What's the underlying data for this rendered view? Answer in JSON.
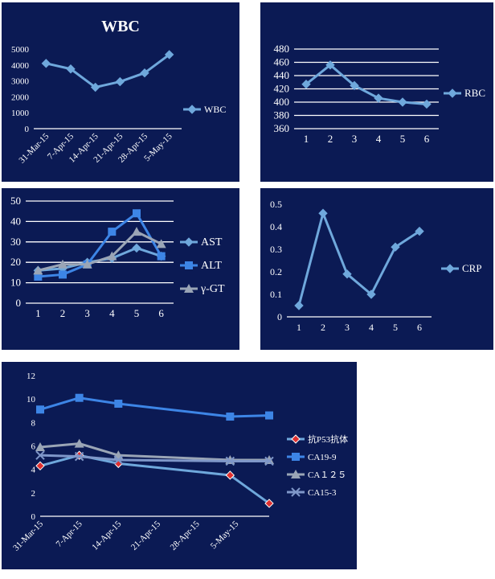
{
  "charts": {
    "wbc": {
      "type": "line",
      "title": "WBC",
      "categories": [
        "31-Mar-15",
        "7-Apr-15",
        "14-Apr-15",
        "21-Apr-15",
        "28-Apr-15",
        "5-May-15"
      ],
      "series": [
        {
          "name": "WBC",
          "color": "#6fa8dc",
          "marker": "diamond",
          "values": [
            4100,
            3750,
            2600,
            2950,
            3500,
            4650
          ]
        }
      ],
      "ylim": [
        0,
        5000
      ],
      "yticks": [
        0,
        1000,
        2000,
        3000,
        4000,
        5000
      ],
      "grid": false,
      "legend": "right"
    },
    "rbc": {
      "type": "line",
      "title": "",
      "categories": [
        "1",
        "2",
        "3",
        "4",
        "5",
        "6"
      ],
      "series": [
        {
          "name": "RBC",
          "color": "#6fa8dc",
          "marker": "diamond",
          "values": [
            427,
            456,
            425,
            406,
            400,
            397
          ]
        }
      ],
      "ylim": [
        360,
        480
      ],
      "yticks": [
        360,
        380,
        400,
        420,
        440,
        460,
        480
      ],
      "grid": true,
      "legend": "right"
    },
    "liver": {
      "type": "line",
      "title": "",
      "categories": [
        "1",
        "2",
        "3",
        "4",
        "5",
        "6"
      ],
      "series": [
        {
          "name": "AST",
          "color": "#6fa8dc",
          "marker": "diamond",
          "values": [
            16,
            17,
            20,
            22,
            27,
            23
          ]
        },
        {
          "name": "ALT",
          "color": "#3d85e6",
          "marker": "square",
          "values": [
            13,
            14,
            19,
            35,
            44,
            23
          ]
        },
        {
          "name": "γ-GT",
          "color": "#9aa5b6",
          "marker": "triangle",
          "values": [
            16,
            19,
            19,
            23,
            35,
            29
          ]
        }
      ],
      "ylim": [
        0,
        50
      ],
      "yticks": [
        0,
        10,
        20,
        30,
        40,
        50
      ],
      "grid": true,
      "legend": "right"
    },
    "crp": {
      "type": "line",
      "title": "",
      "categories": [
        "1",
        "2",
        "3",
        "4",
        "5",
        "6"
      ],
      "series": [
        {
          "name": "CRP",
          "color": "#6fa8dc",
          "marker": "diamond",
          "values": [
            0.05,
            0.46,
            0.19,
            0.1,
            0.31,
            0.38
          ]
        }
      ],
      "ylim": [
        0,
        0.5
      ],
      "yticks": [
        0,
        0.1,
        0.2,
        0.3,
        0.4,
        0.5
      ],
      "grid": false,
      "legend": "right"
    },
    "tumor": {
      "type": "line",
      "title": "",
      "categories": [
        "31-Mar-15",
        "7-Apr-15",
        "14-Apr-15",
        "21-Apr-15",
        "28-Apr-15",
        "5-May-15"
      ],
      "x_days": [
        0,
        7,
        14,
        21,
        28,
        35
      ],
      "series": [
        {
          "name": "抗P53抗体",
          "color": "#6fa8dc",
          "marker": "diamond-red",
          "points": [
            [
              0,
              4.3
            ],
            [
              7,
              5.2
            ],
            [
              14,
              4.5
            ],
            [
              34,
              3.5
            ],
            [
              41,
              1.1
            ]
          ]
        },
        {
          "name": "CA19-9",
          "color": "#3d85e6",
          "marker": "square",
          "points": [
            [
              0,
              9.1
            ],
            [
              7,
              10.1
            ],
            [
              14,
              9.6
            ],
            [
              34,
              8.5
            ],
            [
              41,
              8.6
            ]
          ]
        },
        {
          "name": "CA１２５",
          "color": "#9aa5b6",
          "marker": "triangle",
          "points": [
            [
              0,
              5.9
            ],
            [
              7,
              6.2
            ],
            [
              14,
              5.2
            ],
            [
              34,
              4.8
            ],
            [
              41,
              4.8
            ]
          ]
        },
        {
          "name": "CA15-3",
          "color": "#7f97c9",
          "marker": "x",
          "points": [
            [
              0,
              5.2
            ],
            [
              7,
              5.1
            ],
            [
              14,
              4.8
            ],
            [
              34,
              4.7
            ],
            [
              41,
              4.7
            ]
          ]
        }
      ],
      "xlim": [
        0,
        41
      ],
      "ylim": [
        0,
        12
      ],
      "yticks": [
        0,
        2,
        4,
        6,
        8,
        10,
        12
      ],
      "grid": false,
      "legend": "right"
    }
  }
}
